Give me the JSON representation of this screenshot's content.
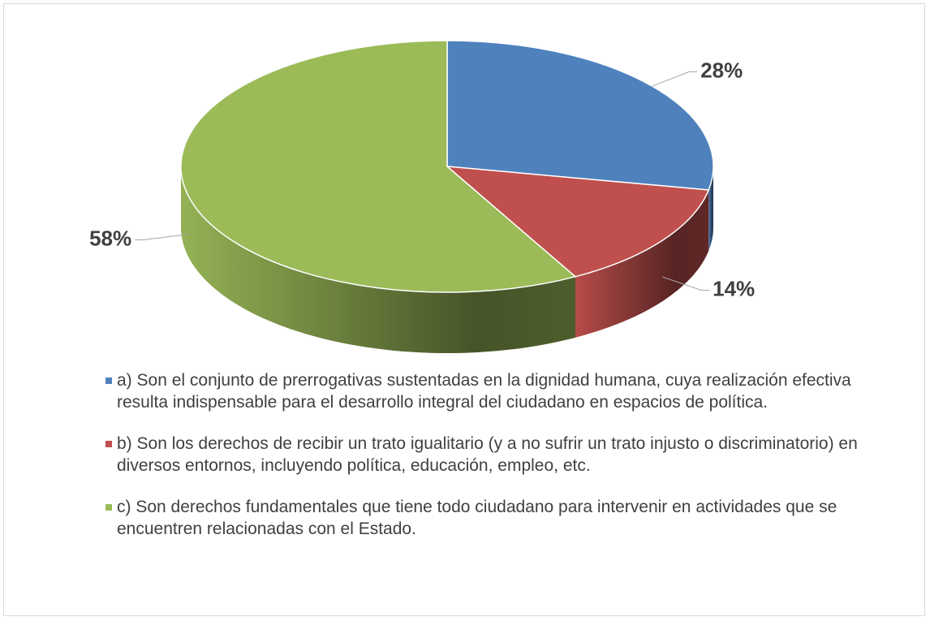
{
  "chart_data": {
    "type": "pie",
    "categories": [
      "a)  Son el conjunto de prerrogativas sustentadas en la dignidad humana, cuya realización efectiva resulta indispensable para el desarrollo integral del ciudadano en espacios de política.",
      "b)  Son los derechos de recibir un trato igualitario (y a no sufrir un trato injusto o discriminatorio) en diversos entornos, incluyendo política, educación, empleo, etc.",
      "c) Son derechos fundamentales que tiene todo ciudadano para intervenir en actividades que se encuentren relacionadas con el Estado."
    ],
    "values": [
      28,
      14,
      58
    ],
    "value_labels": [
      "28%",
      "14%",
      "58%"
    ],
    "colors": [
      "#4f81bd",
      "#c0504d",
      "#9bbb59"
    ],
    "legend": "bottom"
  }
}
